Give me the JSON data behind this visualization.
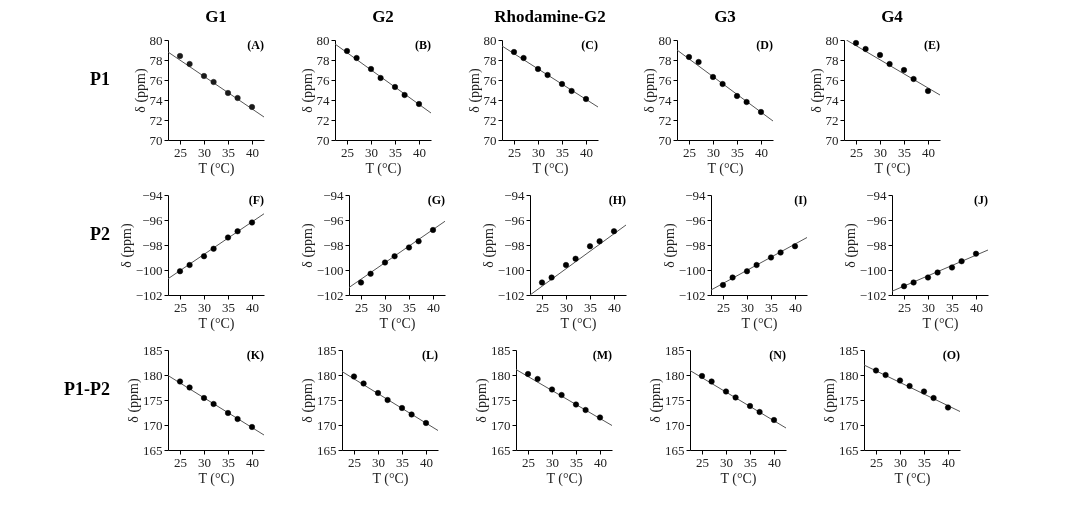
{
  "chart_data": [
    {
      "type": "scatter",
      "title": "G1",
      "xlabel": "T (°C)",
      "ylabel": "δ (ppm)",
      "annotations": [
        "(A)",
        "P1"
      ],
      "xlim": [
        22.5,
        42.5
      ],
      "ylim": [
        70,
        80
      ],
      "xticks": [
        25,
        30,
        35,
        40
      ],
      "yticks": [
        70,
        72,
        74,
        76,
        78,
        80
      ],
      "series": [
        {
          "type": "scatter",
          "marker": "circle",
          "color": "#1a1a1a",
          "x": [
            25,
            27,
            30,
            32,
            35,
            37,
            40
          ],
          "values": [
            78.4,
            77.6,
            76.4,
            75.8,
            74.7,
            74.2,
            73.3
          ]
        },
        {
          "type": "line",
          "color": "#555555",
          "x": [
            22.5,
            42.5
          ],
          "values": [
            78.8,
            72.3
          ]
        }
      ]
    },
    {
      "type": "scatter",
      "title": "G2",
      "xlabel": "T (°C)",
      "ylabel": "δ (ppm)",
      "annotations": [
        "(B)"
      ],
      "xlim": [
        22.5,
        42.5
      ],
      "ylim": [
        70,
        80
      ],
      "xticks": [
        25,
        30,
        35,
        40
      ],
      "yticks": [
        70,
        72,
        74,
        76,
        78,
        80
      ],
      "series": [
        {
          "type": "scatter",
          "marker": "circle",
          "color": "#000000",
          "x": [
            25,
            27,
            30,
            32,
            35,
            37,
            40
          ],
          "values": [
            78.9,
            78.2,
            77.1,
            76.2,
            75.3,
            74.5,
            73.6
          ]
        },
        {
          "type": "line",
          "color": "#555555",
          "x": [
            22.5,
            42.5
          ],
          "values": [
            79.6,
            72.7
          ]
        }
      ]
    },
    {
      "type": "scatter",
      "title": "Rhodamine-G2",
      "xlabel": "T (°C)",
      "ylabel": "δ (ppm)",
      "annotations": [
        "(C)"
      ],
      "xlim": [
        22.5,
        42.5
      ],
      "ylim": [
        70,
        80
      ],
      "xticks": [
        25,
        30,
        35,
        40
      ],
      "yticks": [
        70,
        72,
        74,
        76,
        78,
        80
      ],
      "series": [
        {
          "type": "scatter",
          "marker": "circle",
          "color": "#000000",
          "x": [
            25,
            27,
            30,
            32,
            35,
            37,
            40
          ],
          "values": [
            78.8,
            78.2,
            77.1,
            76.5,
            75.6,
            74.9,
            74.1
          ]
        },
        {
          "type": "line",
          "color": "#555555",
          "x": [
            22.5,
            42.5
          ],
          "values": [
            79.4,
            73.3
          ]
        }
      ]
    },
    {
      "type": "scatter",
      "title": "G3",
      "xlabel": "T (°C)",
      "ylabel": "δ (ppm)",
      "annotations": [
        "(D)"
      ],
      "xlim": [
        22.5,
        42.5
      ],
      "ylim": [
        70,
        80
      ],
      "xticks": [
        25,
        30,
        35,
        40
      ],
      "yticks": [
        70,
        72,
        74,
        76,
        78,
        80
      ],
      "series": [
        {
          "type": "scatter",
          "marker": "circle",
          "color": "#000000",
          "x": [
            25,
            27,
            30,
            32,
            35,
            37,
            40
          ],
          "values": [
            78.3,
            77.8,
            76.3,
            75.6,
            74.4,
            73.8,
            72.8
          ]
        },
        {
          "type": "line",
          "color": "#555555",
          "x": [
            22.5,
            42.5
          ],
          "values": [
            79.0,
            71.9
          ]
        }
      ]
    },
    {
      "type": "scatter",
      "title": "G4",
      "xlabel": "T (°C)",
      "ylabel": "δ (ppm)",
      "annotations": [
        "(E)"
      ],
      "xlim": [
        22.5,
        42.5
      ],
      "ylim": [
        70,
        80
      ],
      "xticks": [
        25,
        30,
        35,
        40
      ],
      "yticks": [
        70,
        72,
        74,
        76,
        78,
        80
      ],
      "series": [
        {
          "type": "scatter",
          "marker": "circle",
          "color": "#000000",
          "x": [
            25,
            27,
            30,
            32,
            35,
            37,
            40
          ],
          "values": [
            79.7,
            79.1,
            78.5,
            77.6,
            77.0,
            76.1,
            74.9
          ]
        },
        {
          "type": "line",
          "color": "#555555",
          "x": [
            23.0,
            42.5
          ],
          "values": [
            80.0,
            74.5
          ]
        }
      ]
    },
    {
      "type": "scatter",
      "xlabel": "T (°C)",
      "ylabel": "δ (ppm)",
      "annotations": [
        "(F)",
        "P2"
      ],
      "xlim": [
        22.5,
        42.5
      ],
      "ylim": [
        -102,
        -94
      ],
      "xticks": [
        25,
        30,
        35,
        40
      ],
      "yticks": [
        -102,
        -100,
        -98,
        -96,
        -94
      ],
      "series": [
        {
          "type": "scatter",
          "marker": "circle",
          "color": "#000000",
          "x": [
            25,
            27,
            30,
            32,
            35,
            37,
            40
          ],
          "values": [
            -100.1,
            -99.6,
            -98.9,
            -98.3,
            -97.4,
            -96.9,
            -96.2
          ]
        },
        {
          "type": "line",
          "color": "#555555",
          "x": [
            22.5,
            42.5
          ],
          "values": [
            -100.7,
            -95.5
          ]
        }
      ]
    },
    {
      "type": "scatter",
      "xlabel": "T (°C)",
      "ylabel": "δ (ppm)",
      "annotations": [
        "(G)"
      ],
      "xlim": [
        22.5,
        42.5
      ],
      "ylim": [
        -102,
        -94
      ],
      "xticks": [
        25,
        30,
        35,
        40
      ],
      "yticks": [
        -102,
        -100,
        -98,
        -96,
        -94
      ],
      "series": [
        {
          "type": "scatter",
          "marker": "circle",
          "color": "#000000",
          "x": [
            25,
            27,
            30,
            32,
            35,
            37,
            40
          ],
          "values": [
            -101.0,
            -100.3,
            -99.4,
            -98.9,
            -98.2,
            -97.7,
            -96.8
          ]
        },
        {
          "type": "line",
          "color": "#555555",
          "x": [
            22.5,
            42.5
          ],
          "values": [
            -101.4,
            -96.1
          ]
        }
      ]
    },
    {
      "type": "scatter",
      "xlabel": "T (°C)",
      "ylabel": "δ (ppm)",
      "annotations": [
        "(H)"
      ],
      "xlim": [
        22.5,
        42.5
      ],
      "ylim": [
        -102,
        -94
      ],
      "xticks": [
        25,
        30,
        35,
        40
      ],
      "yticks": [
        -102,
        -100,
        -98,
        -96,
        -94
      ],
      "series": [
        {
          "type": "scatter",
          "marker": "circle",
          "color": "#000000",
          "x": [
            25,
            27,
            30,
            32,
            35,
            37,
            40
          ],
          "values": [
            -101.0,
            -100.6,
            -99.6,
            -99.1,
            -98.1,
            -97.7,
            -96.9
          ]
        },
        {
          "type": "line",
          "color": "#555555",
          "x": [
            22.5,
            42.5
          ],
          "values": [
            -102.0,
            -96.4
          ]
        }
      ]
    },
    {
      "type": "scatter",
      "xlabel": "T (°C)",
      "ylabel": "δ (ppm)",
      "annotations": [
        "(I)"
      ],
      "xlim": [
        22.5,
        42.5
      ],
      "ylim": [
        -102,
        -94
      ],
      "xticks": [
        25,
        30,
        35,
        40
      ],
      "yticks": [
        -102,
        -100,
        -98,
        -96,
        -94
      ],
      "series": [
        {
          "type": "scatter",
          "marker": "circle",
          "color": "#000000",
          "x": [
            25,
            27,
            30,
            32,
            35,
            37,
            40
          ],
          "values": [
            -101.2,
            -100.6,
            -100.1,
            -99.6,
            -99.0,
            -98.6,
            -98.1
          ]
        },
        {
          "type": "line",
          "color": "#555555",
          "x": [
            22.5,
            42.5
          ],
          "values": [
            -101.6,
            -97.4
          ]
        }
      ]
    },
    {
      "type": "scatter",
      "xlabel": "T (°C)",
      "ylabel": "δ (ppm)",
      "annotations": [
        "(J)"
      ],
      "xlim": [
        22.5,
        42.5
      ],
      "ylim": [
        -102,
        -94
      ],
      "xticks": [
        25,
        30,
        35,
        40
      ],
      "yticks": [
        -102,
        -100,
        -98,
        -96,
        -94
      ],
      "series": [
        {
          "type": "scatter",
          "marker": "circle",
          "color": "#000000",
          "x": [
            25,
            27,
            30,
            32,
            35,
            37,
            40
          ],
          "values": [
            -101.3,
            -101.0,
            -100.6,
            -100.2,
            -99.8,
            -99.3,
            -98.7
          ]
        },
        {
          "type": "line",
          "color": "#555555",
          "x": [
            22.5,
            42.5
          ],
          "values": [
            -101.7,
            -98.4
          ]
        }
      ]
    },
    {
      "type": "scatter",
      "xlabel": "T (°C)",
      "ylabel": "δ (ppm)",
      "annotations": [
        "(K)",
        "P1-P2"
      ],
      "xlim": [
        22.5,
        42.5
      ],
      "ylim": [
        165,
        185
      ],
      "xticks": [
        25,
        30,
        35,
        40
      ],
      "yticks": [
        165,
        170,
        175,
        180,
        185
      ],
      "series": [
        {
          "type": "scatter",
          "marker": "circle",
          "color": "#000000",
          "x": [
            25,
            27,
            30,
            32,
            35,
            37,
            40
          ],
          "values": [
            178.7,
            177.5,
            175.4,
            174.2,
            172.4,
            171.2,
            169.6
          ]
        },
        {
          "type": "line",
          "color": "#555555",
          "x": [
            22.5,
            42.5
          ],
          "values": [
            179.9,
            168.0
          ]
        }
      ]
    },
    {
      "type": "scatter",
      "xlabel": "T (°C)",
      "ylabel": "δ (ppm)",
      "annotations": [
        "(L)"
      ],
      "xlim": [
        22.5,
        42.5
      ],
      "ylim": [
        165,
        185
      ],
      "xticks": [
        25,
        30,
        35,
        40
      ],
      "yticks": [
        165,
        170,
        175,
        180,
        185
      ],
      "series": [
        {
          "type": "scatter",
          "marker": "circle",
          "color": "#000000",
          "x": [
            25,
            27,
            30,
            32,
            35,
            37,
            40
          ],
          "values": [
            179.7,
            178.3,
            176.4,
            175.0,
            173.4,
            172.1,
            170.4
          ]
        },
        {
          "type": "line",
          "color": "#555555",
          "x": [
            22.5,
            42.5
          ],
          "values": [
            180.7,
            168.9
          ]
        }
      ]
    },
    {
      "type": "scatter",
      "xlabel": "T (°C)",
      "ylabel": "δ (ppm)",
      "annotations": [
        "(M)"
      ],
      "xlim": [
        22.5,
        42.5
      ],
      "ylim": [
        165,
        185
      ],
      "xticks": [
        25,
        30,
        35,
        40
      ],
      "yticks": [
        165,
        170,
        175,
        180,
        185
      ],
      "series": [
        {
          "type": "scatter",
          "marker": "circle",
          "color": "#000000",
          "x": [
            25,
            27,
            30,
            32,
            35,
            37,
            40
          ],
          "values": [
            180.2,
            179.2,
            177.1,
            176.0,
            174.1,
            173.0,
            171.5
          ]
        },
        {
          "type": "line",
          "color": "#555555",
          "x": [
            22.5,
            42.5
          ],
          "values": [
            181.1,
            169.9
          ]
        }
      ]
    },
    {
      "type": "scatter",
      "xlabel": "T (°C)",
      "ylabel": "δ (ppm)",
      "annotations": [
        "(N)"
      ],
      "xlim": [
        22.5,
        42.5
      ],
      "ylim": [
        165,
        185
      ],
      "xticks": [
        25,
        30,
        35,
        40
      ],
      "yticks": [
        165,
        170,
        175,
        180,
        185
      ],
      "series": [
        {
          "type": "scatter",
          "marker": "circle",
          "color": "#000000",
          "x": [
            25,
            27,
            30,
            32,
            35,
            37,
            40
          ],
          "values": [
            179.8,
            178.7,
            176.7,
            175.5,
            173.8,
            172.6,
            171.0
          ]
        },
        {
          "type": "line",
          "color": "#555555",
          "x": [
            22.5,
            42.5
          ],
          "values": [
            180.9,
            169.4
          ]
        }
      ]
    },
    {
      "type": "scatter",
      "xlabel": "T (°C)",
      "ylabel": "δ (ppm)",
      "annotations": [
        "(O)"
      ],
      "xlim": [
        22.5,
        42.5
      ],
      "ylim": [
        165,
        185
      ],
      "xticks": [
        25,
        30,
        35,
        40
      ],
      "yticks": [
        165,
        170,
        175,
        180,
        185
      ],
      "series": [
        {
          "type": "scatter",
          "marker": "circle",
          "color": "#000000",
          "x": [
            25,
            27,
            30,
            32,
            35,
            37,
            40
          ],
          "values": [
            180.9,
            180.0,
            178.9,
            177.8,
            176.7,
            175.4,
            173.5
          ]
        },
        {
          "type": "line",
          "color": "#555555",
          "x": [
            22.5,
            42.5
          ],
          "values": [
            182.0,
            172.7
          ]
        }
      ]
    }
  ]
}
